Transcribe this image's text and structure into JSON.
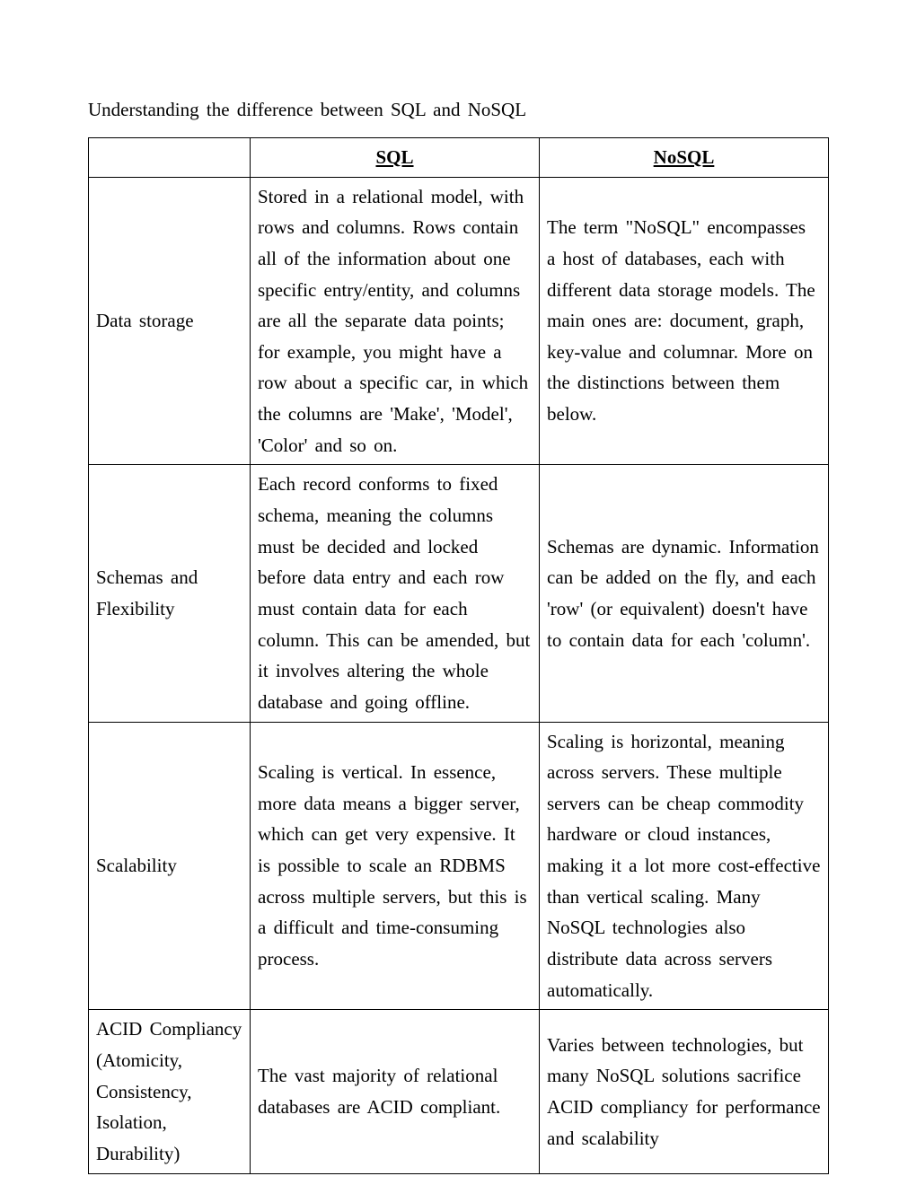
{
  "title": "Understanding  the difference  between SQL and NoSQL",
  "columns": {
    "blank": "",
    "sql": "SQL",
    "nosql": "NoSQL"
  },
  "rows": [
    {
      "label": "Data storage",
      "sql": "Stored in a relational  model,  with rows and columns.  Rows contain  all of the information  about one specific  entry/entity,  and columns are all the separate  data points; for example,  you might  have a row about a specific  car, in which  the columns  are 'Make', 'Model', 'Color'  and so on.",
      "nosql": "The term \"NoSQL\" encompasses  a host of databases, each with different  data storage models. The main  ones  are: document,  graph, key-value  and columnar.  More on the distinctions  between  them below."
    },
    {
      "label": "Schemas  and Flexibility",
      "sql": "Each record conforms  to fixed schema, meaning  the columns  must be decided and locked before data entry and each row must contain data for each column.  This can be amended,  but it involves  altering the whole  database and going offline.",
      "nosql": "Schemas  are dynamic.  Information can be added on the fly,  and each 'row'  (or equivalent)  doesn't have to contain  data for each 'column'."
    },
    {
      "label": "Scalability",
      "sql": "Scaling  is vertical.  In essence, more data means  a bigger server, which can get very expensive.  It is possible  to scale an RDBMS across multiple  servers,  but this is a difficult  and time-consuming process.",
      "nosql": "Scaling  is horizontal,  meaning across servers.  These multiple servers can be cheap commodity hardware  or cloud instances, making  it a lot more  cost-effective than vertical  scaling.  Many NoSQL technologies  also distribute  data across servers automatically."
    },
    {
      "label": "ACID Compliancy (Atomicity, Consistency, Isolation, Durability)",
      "sql": "The vast majority  of relational databases are ACID compliant.",
      "nosql": "Varies  between  technologies,  but many  NoSQL solutions  sacrifice ACID compliancy  for performance and scalability"
    }
  ]
}
